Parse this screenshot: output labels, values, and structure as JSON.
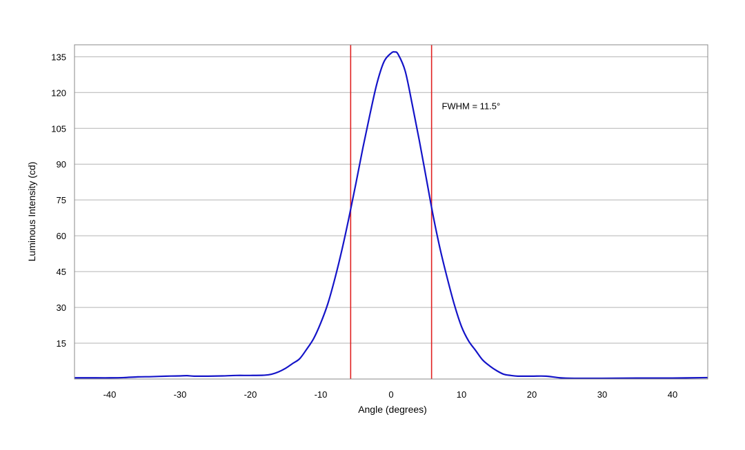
{
  "chart_data": {
    "type": "line",
    "title": "",
    "xlabel": "Angle (degrees)",
    "ylabel": "Luminous Intensity (cd)",
    "xlim": [
      -45,
      45
    ],
    "ylim": [
      0,
      140
    ],
    "xticks": [
      -40,
      -30,
      -20,
      -10,
      0,
      10,
      20,
      30,
      40
    ],
    "yticks": [
      15,
      30,
      45,
      60,
      75,
      90,
      105,
      120,
      135
    ],
    "xtick_labels": [
      "-40",
      "-30",
      "-20",
      "-10",
      "0",
      "10",
      "20",
      "30",
      "40"
    ],
    "ytick_labels": [
      "15",
      "30",
      "45",
      "60",
      "75",
      "90",
      "105",
      "120",
      "135"
    ],
    "grid": {
      "horizontal": true,
      "vertical": false
    },
    "legend": "none",
    "series": [
      {
        "color": "#1414c8",
        "x": [
          -45,
          -42,
          -40,
          -38,
          -36,
          -34,
          -32,
          -30,
          -29,
          -28,
          -26,
          -24,
          -22,
          -20,
          -18,
          -17,
          -16,
          -15,
          -14,
          -13,
          -12,
          -11,
          -10,
          -9,
          -8,
          -7,
          -6,
          -5,
          -4,
          -3,
          -2,
          -1,
          0,
          0.5,
          1,
          2,
          3,
          4,
          5,
          6,
          7,
          8,
          9,
          10,
          11,
          12,
          13,
          14,
          15,
          16,
          17,
          18,
          20,
          22,
          24,
          26,
          30,
          35,
          40,
          45
        ],
        "y": [
          0.5,
          0.5,
          0.5,
          0.6,
          0.9,
          1.0,
          1.2,
          1.3,
          1.4,
          1.2,
          1.2,
          1.3,
          1.5,
          1.5,
          1.6,
          2.0,
          3.0,
          4.5,
          6.5,
          8.5,
          12.5,
          17.0,
          23.5,
          31.5,
          42.0,
          54.0,
          67.5,
          82.0,
          97.0,
          111.0,
          124.0,
          133.0,
          136.5,
          137.0,
          136.0,
          129.0,
          115.0,
          100.0,
          84.0,
          68.0,
          54.0,
          42.0,
          31.0,
          22.0,
          16.0,
          12.0,
          8.0,
          5.5,
          3.5,
          2.0,
          1.5,
          1.2,
          1.2,
          1.2,
          0.5,
          0.3,
          0.3,
          0.4,
          0.4,
          0.6
        ]
      }
    ],
    "markers": [
      {
        "x": -5.75,
        "color": "#e02020"
      },
      {
        "x": 5.75,
        "color": "#e02020"
      }
    ],
    "annotations": [
      {
        "text": "FWHM = 11.5°",
        "x": 7.2,
        "y": 113
      }
    ]
  }
}
